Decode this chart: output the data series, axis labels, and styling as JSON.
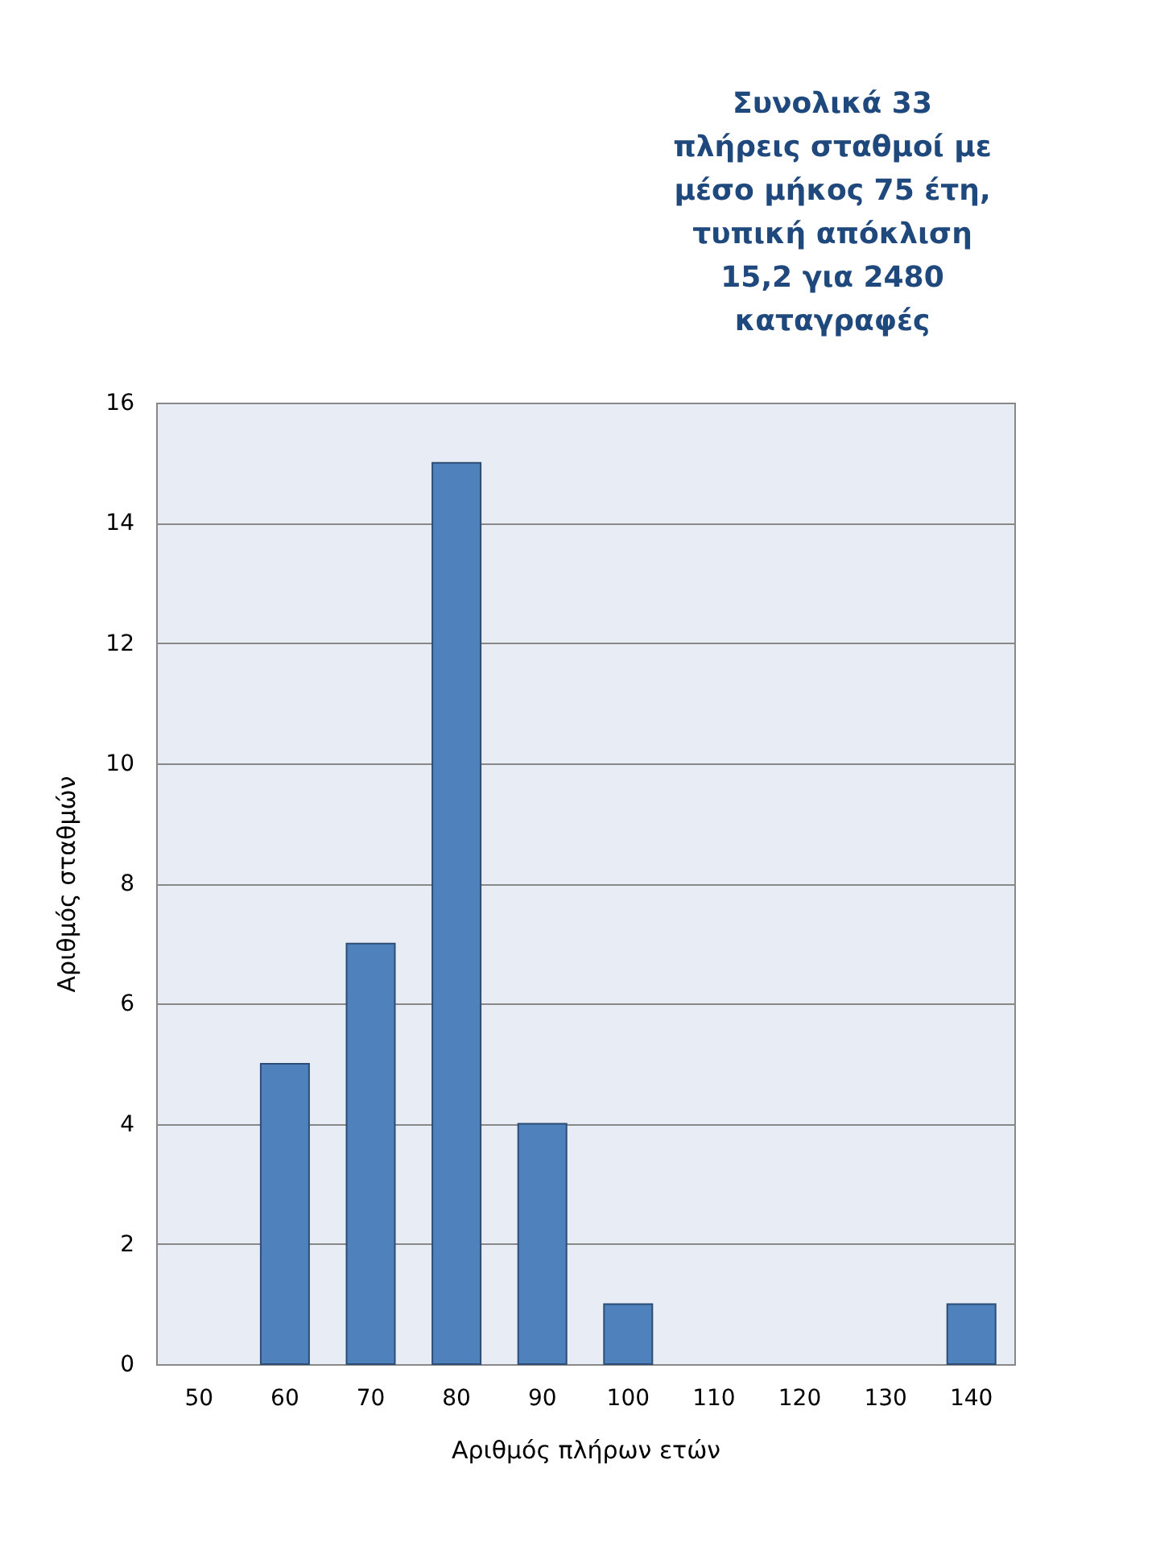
{
  "chart_data": {
    "type": "bar",
    "xlabel": "Αριθμός πλήρων ετών",
    "ylabel": "Αριθμός σταθμών",
    "categories": [
      "50",
      "60",
      "70",
      "80",
      "90",
      "100",
      "110",
      "120",
      "130",
      "140"
    ],
    "values": [
      0,
      5,
      7,
      15,
      4,
      1,
      0,
      0,
      0,
      1
    ],
    "color": "#4f81bd",
    "ylim": [
      0,
      16
    ],
    "yticks": [
      0,
      2,
      4,
      6,
      8,
      10,
      12,
      14,
      16
    ],
    "grid": "y",
    "annotations": [
      "Συνολικά 33 πλήρεις σταθμοί με μέσο μήκος 75 έτη, τυπική απόκλιση 15,2  για 2480 καταγραφές"
    ]
  }
}
